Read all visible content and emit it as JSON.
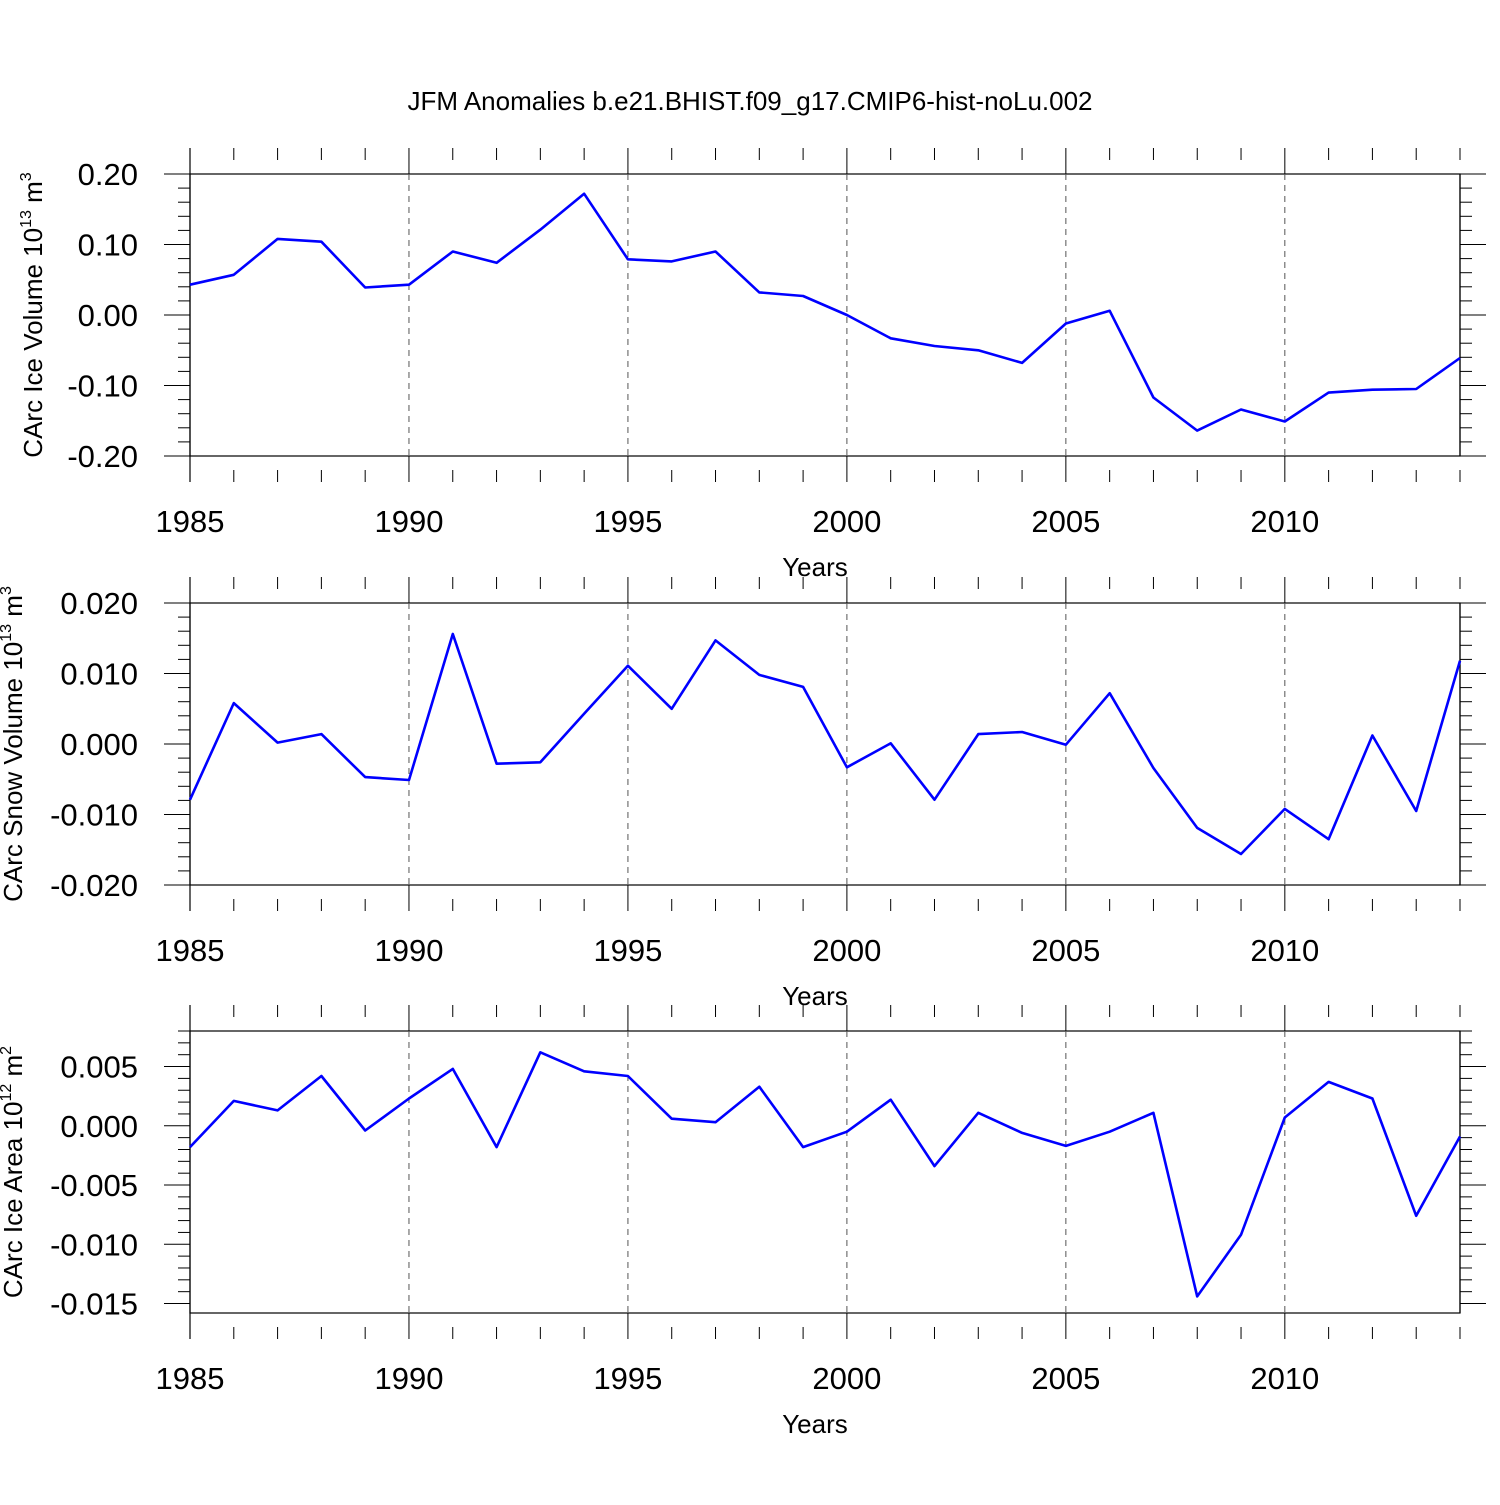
{
  "figure_title": "JFM Anomalies b.e21.BHIST.f09_g17.CMIP6-hist-noLu.002",
  "style": {
    "line_color": "#0000ff",
    "axis_color": "#000000",
    "grid_color": "#555555"
  },
  "chart_data": [
    {
      "type": "line",
      "title": "",
      "xlabel": "Years",
      "ylabel": {
        "prefix": "CArc Ice Volume 10",
        "exponent": "13",
        "unit": " m",
        "unit_exponent": "3"
      },
      "xlim": [
        1985,
        2014
      ],
      "ylim": [
        -0.2,
        0.2
      ],
      "x_ticks": [
        "1985",
        "1990",
        "1995",
        "2000",
        "2005",
        "2010"
      ],
      "y_ticks": [
        "0.20",
        "0.10",
        "0.00",
        "-0.10",
        "-0.20"
      ],
      "y_tick_values": [
        0.2,
        0.1,
        0.0,
        -0.1,
        -0.2
      ],
      "grid": "vertical dashed at major x ticks",
      "x": [
        1985,
        1986,
        1987,
        1988,
        1989,
        1990,
        1991,
        1992,
        1993,
        1994,
        1995,
        1996,
        1997,
        1998,
        1999,
        2000,
        2001,
        2002,
        2003,
        2004,
        2005,
        2006,
        2007,
        2008,
        2009,
        2010,
        2011,
        2012,
        2013,
        2014
      ],
      "values": [
        0.043,
        0.057,
        0.108,
        0.104,
        0.039,
        0.043,
        0.09,
        0.074,
        0.121,
        0.172,
        0.079,
        0.076,
        0.09,
        0.032,
        0.027,
        0.0,
        -0.033,
        -0.044,
        -0.05,
        -0.068,
        -0.012,
        0.006,
        -0.117,
        -0.164,
        -0.134,
        -0.151,
        -0.11,
        -0.106,
        -0.105,
        -0.061
      ]
    },
    {
      "type": "line",
      "title": "",
      "xlabel": "Years",
      "ylabel": {
        "prefix": "CArc Snow Volume 10",
        "exponent": "13",
        "unit": " m",
        "unit_exponent": "3"
      },
      "xlim": [
        1985,
        2014
      ],
      "ylim": [
        -0.02,
        0.02
      ],
      "x_ticks": [
        "1985",
        "1990",
        "1995",
        "2000",
        "2005",
        "2010"
      ],
      "y_ticks": [
        "0.020",
        "0.010",
        "0.000",
        "-0.010",
        "-0.020"
      ],
      "y_tick_values": [
        0.02,
        0.01,
        0.0,
        -0.01,
        -0.02
      ],
      "grid": "vertical dashed at major x ticks",
      "x": [
        1985,
        1986,
        1987,
        1988,
        1989,
        1990,
        1991,
        1992,
        1993,
        1994,
        1995,
        1996,
        1997,
        1998,
        1999,
        2000,
        2001,
        2002,
        2003,
        2004,
        2005,
        2006,
        2007,
        2008,
        2009,
        2010,
        2011,
        2012,
        2013,
        2014
      ],
      "values": [
        -0.0079,
        0.0058,
        0.0002,
        0.0014,
        -0.0047,
        -0.0051,
        0.0156,
        -0.0028,
        -0.0026,
        0.0043,
        0.0111,
        0.005,
        0.0147,
        0.0098,
        0.0081,
        -0.0033,
        0.0001,
        -0.0079,
        0.0014,
        0.0017,
        -0.0001,
        0.0072,
        -0.0034,
        -0.0119,
        -0.0156,
        -0.0092,
        -0.0135,
        0.0012,
        -0.0095,
        0.0118
      ]
    },
    {
      "type": "line",
      "title": "",
      "xlabel": "Years",
      "ylabel": {
        "prefix": "CArc Ice Area 10",
        "exponent": "12",
        "unit": " m",
        "unit_exponent": "2"
      },
      "xlim": [
        1985,
        2014
      ],
      "ylim": [
        -0.0158,
        0.008
      ],
      "x_ticks": [
        "1985",
        "1990",
        "1995",
        "2000",
        "2005",
        "2010"
      ],
      "y_ticks": [
        "0.005",
        "0.000",
        "-0.005",
        "-0.010",
        "-0.015"
      ],
      "y_tick_values": [
        0.005,
        0.0,
        -0.005,
        -0.01,
        -0.015
      ],
      "grid": "vertical dashed at major x ticks",
      "x": [
        1985,
        1986,
        1987,
        1988,
        1989,
        1990,
        1991,
        1992,
        1993,
        1994,
        1995,
        1996,
        1997,
        1998,
        1999,
        2000,
        2001,
        2002,
        2003,
        2004,
        2005,
        2006,
        2007,
        2008,
        2009,
        2010,
        2011,
        2012,
        2013,
        2014
      ],
      "values": [
        -0.0018,
        0.0021,
        0.0013,
        0.0042,
        -0.0004,
        0.0023,
        0.0048,
        -0.0018,
        0.0062,
        0.0046,
        0.0042,
        0.0006,
        0.0003,
        0.0033,
        -0.0018,
        -0.0005,
        0.0022,
        -0.0034,
        0.0011,
        -0.0006,
        -0.0017,
        -0.0005,
        0.0011,
        -0.0144,
        -0.0092,
        0.0007,
        0.0037,
        0.0023,
        -0.0076,
        -0.0009
      ]
    }
  ]
}
